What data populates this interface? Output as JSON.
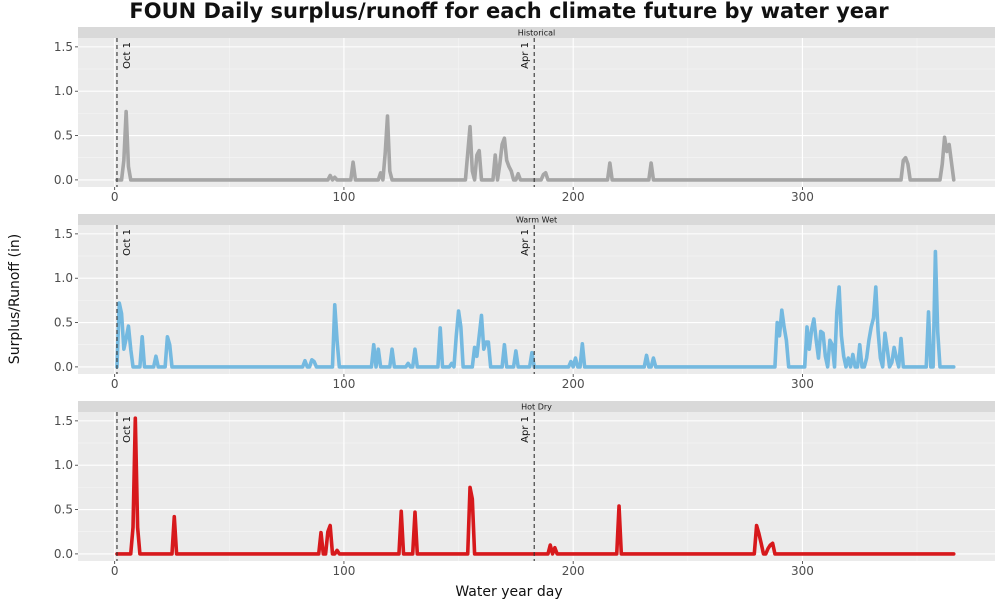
{
  "chart_data": {
    "type": "line",
    "title": "FOUN Daily surplus/runoff for each climate future by water year",
    "xlabel": "Water year day",
    "ylabel": "Surplus/Runoff (in)",
    "xlim": [
      -16,
      384
    ],
    "ylim": [
      -0.08,
      1.6
    ],
    "x_ticks": [
      0,
      100,
      200,
      300
    ],
    "y_ticks": [
      0.0,
      0.5,
      1.0,
      1.5
    ],
    "y_tick_labels": [
      "0.0",
      "0.5",
      "1.0",
      "1.5"
    ],
    "reference_lines": [
      {
        "x": 1,
        "label": "Oct 1",
        "style": "dashed"
      },
      {
        "x": 183,
        "label": "Apr 1",
        "style": "dashed"
      }
    ],
    "x_range": [
      1,
      366
    ],
    "grid": true,
    "legend": "none",
    "panels": [
      {
        "name": "Historical",
        "color": "#a6a6a6",
        "peaks": [
          [
            4,
            0.22
          ],
          [
            5,
            0.77
          ],
          [
            6,
            0.15
          ],
          [
            94,
            0.05
          ],
          [
            96,
            0.03
          ],
          [
            104,
            0.2
          ],
          [
            116,
            0.08
          ],
          [
            118,
            0.3
          ],
          [
            119,
            0.72
          ],
          [
            120,
            0.1
          ],
          [
            154,
            0.3
          ],
          [
            155,
            0.6
          ],
          [
            156,
            0.1
          ],
          [
            158,
            0.28
          ],
          [
            159,
            0.33
          ],
          [
            166,
            0.28
          ],
          [
            168,
            0.18
          ],
          [
            169,
            0.4
          ],
          [
            170,
            0.47
          ],
          [
            171,
            0.22
          ],
          [
            172,
            0.15
          ],
          [
            173,
            0.1
          ],
          [
            176,
            0.07
          ],
          [
            187,
            0.06
          ],
          [
            188,
            0.08
          ],
          [
            216,
            0.19
          ],
          [
            234,
            0.19
          ],
          [
            344,
            0.22
          ],
          [
            345,
            0.25
          ],
          [
            346,
            0.18
          ],
          [
            361,
            0.18
          ],
          [
            362,
            0.48
          ],
          [
            363,
            0.32
          ],
          [
            364,
            0.4
          ],
          [
            365,
            0.2
          ]
        ]
      },
      {
        "name": "Warm Wet",
        "color": "#74b9e0",
        "peaks": [
          [
            2,
            0.72
          ],
          [
            3,
            0.6
          ],
          [
            4,
            0.2
          ],
          [
            5,
            0.32
          ],
          [
            6,
            0.46
          ],
          [
            7,
            0.2
          ],
          [
            12,
            0.34
          ],
          [
            18,
            0.12
          ],
          [
            23,
            0.34
          ],
          [
            24,
            0.25
          ],
          [
            83,
            0.07
          ],
          [
            86,
            0.08
          ],
          [
            87,
            0.06
          ],
          [
            96,
            0.7
          ],
          [
            97,
            0.3
          ],
          [
            113,
            0.25
          ],
          [
            115,
            0.2
          ],
          [
            121,
            0.2
          ],
          [
            128,
            0.04
          ],
          [
            131,
            0.2
          ],
          [
            142,
            0.44
          ],
          [
            147,
            0.04
          ],
          [
            149,
            0.35
          ],
          [
            150,
            0.63
          ],
          [
            151,
            0.45
          ],
          [
            157,
            0.22
          ],
          [
            158,
            0.12
          ],
          [
            159,
            0.35
          ],
          [
            160,
            0.58
          ],
          [
            161,
            0.2
          ],
          [
            162,
            0.28
          ],
          [
            163,
            0.28
          ],
          [
            170,
            0.25
          ],
          [
            175,
            0.18
          ],
          [
            182,
            0.16
          ],
          [
            199,
            0.06
          ],
          [
            201,
            0.1
          ],
          [
            204,
            0.26
          ],
          [
            232,
            0.13
          ],
          [
            235,
            0.1
          ],
          [
            289,
            0.5
          ],
          [
            290,
            0.35
          ],
          [
            291,
            0.64
          ],
          [
            292,
            0.45
          ],
          [
            293,
            0.3
          ],
          [
            302,
            0.45
          ],
          [
            303,
            0.2
          ],
          [
            304,
            0.42
          ],
          [
            305,
            0.54
          ],
          [
            306,
            0.3
          ],
          [
            307,
            0.1
          ],
          [
            308,
            0.4
          ],
          [
            309,
            0.38
          ],
          [
            310,
            0.12
          ],
          [
            312,
            0.3
          ],
          [
            313,
            0.25
          ],
          [
            315,
            0.62
          ],
          [
            316,
            0.9
          ],
          [
            317,
            0.35
          ],
          [
            318,
            0.12
          ],
          [
            320,
            0.1
          ],
          [
            322,
            0.14
          ],
          [
            325,
            0.25
          ],
          [
            328,
            0.1
          ],
          [
            329,
            0.3
          ],
          [
            330,
            0.45
          ],
          [
            331,
            0.55
          ],
          [
            332,
            0.9
          ],
          [
            333,
            0.4
          ],
          [
            334,
            0.1
          ],
          [
            336,
            0.38
          ],
          [
            337,
            0.2
          ],
          [
            339,
            0.05
          ],
          [
            340,
            0.22
          ],
          [
            341,
            0.1
          ],
          [
            343,
            0.32
          ],
          [
            355,
            0.62
          ],
          [
            358,
            1.3
          ],
          [
            359,
            0.4
          ]
        ]
      },
      {
        "name": "Hot Dry",
        "color": "#d7191c",
        "peaks": [
          [
            8,
            0.3
          ],
          [
            9,
            1.53
          ],
          [
            10,
            0.3
          ],
          [
            26,
            0.42
          ],
          [
            90,
            0.24
          ],
          [
            93,
            0.25
          ],
          [
            94,
            0.32
          ],
          [
            97,
            0.04
          ],
          [
            125,
            0.48
          ],
          [
            131,
            0.47
          ],
          [
            155,
            0.75
          ],
          [
            156,
            0.62
          ],
          [
            190,
            0.1
          ],
          [
            192,
            0.07
          ],
          [
            220,
            0.54
          ],
          [
            280,
            0.32
          ],
          [
            281,
            0.23
          ],
          [
            282,
            0.12
          ],
          [
            285,
            0.06
          ],
          [
            286,
            0.1
          ],
          [
            287,
            0.12
          ]
        ]
      }
    ]
  }
}
